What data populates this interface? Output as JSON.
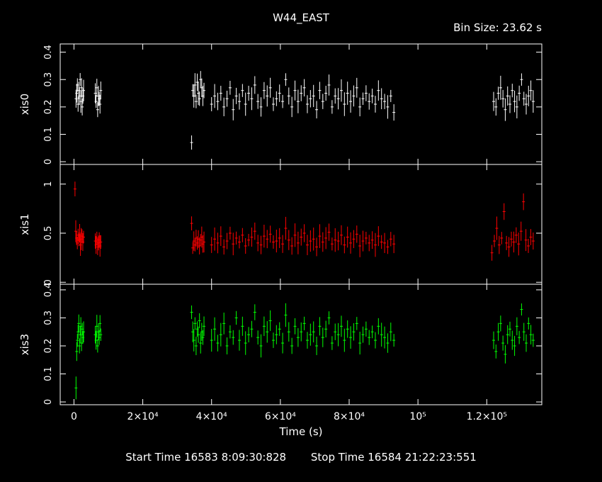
{
  "header": {
    "title": "W44_EAST",
    "bin_size": "Bin Size: 23.62 s"
  },
  "footer": {
    "start_time": "Start Time 16583  8:09:30:828",
    "stop_time": "Stop Time 16584 21:22:23:551"
  },
  "colors": {
    "xis0": "#ffffff",
    "xis1": "#ff0000",
    "xis3": "#00ff00",
    "axes": "#ffffff",
    "background": "#000000"
  },
  "chart_data": {
    "type": "scatter",
    "title": "W44_EAST",
    "xlabel": "Time (s)",
    "xlim": [
      -4000,
      136000
    ],
    "x_ticks": [
      {
        "value": 0,
        "label": "0"
      },
      {
        "value": 20000,
        "label": "2×10⁴"
      },
      {
        "value": 40000,
        "label": "4×10⁴"
      },
      {
        "value": 60000,
        "label": "6×10⁴"
      },
      {
        "value": 80000,
        "label": "8×10⁴"
      },
      {
        "value": 100000,
        "label": "10⁵"
      },
      {
        "value": 120000,
        "label": "1.2×10⁵"
      }
    ],
    "panels": [
      {
        "name": "xis0",
        "ylabel": "xis0",
        "color": "#ffffff",
        "ylim": [
          -0.01,
          0.43
        ],
        "yticks": [
          0,
          0.1,
          0.2,
          0.3,
          0.4
        ],
        "segments": [
          {
            "t_start": 600,
            "t_end": 2800,
            "values": [
              0.23,
              0.25,
              0.28,
              0.21,
              0.26,
              0.24,
              0.3,
              0.22,
              0.27,
              0.2,
              0.24,
              0.26
            ]
          },
          {
            "t_start": 6200,
            "t_end": 7800,
            "values": [
              0.25,
              0.22,
              0.27,
              0.19,
              0.24,
              0.23,
              0.21,
              0.26
            ]
          },
          {
            "t_start": 34200,
            "t_end": 37800,
            "values": [
              0.07,
              0.26,
              0.24,
              0.28,
              0.22,
              0.29,
              0.25,
              0.23,
              0.3,
              0.27,
              0.24,
              0.26
            ]
          },
          {
            "t_start": 40000,
            "t_end": 93000,
            "values": [
              0.21,
              0.24,
              0.22,
              0.25,
              0.2,
              0.23,
              0.27,
              0.19,
              0.24,
              0.22,
              0.26,
              0.21,
              0.25,
              0.23,
              0.28,
              0.22,
              0.2,
              0.26,
              0.24,
              0.27,
              0.21,
              0.23,
              0.25,
              0.22,
              0.3,
              0.24,
              0.2,
              0.26,
              0.22,
              0.25,
              0.27,
              0.21,
              0.23,
              0.24,
              0.19,
              0.26,
              0.22,
              0.25,
              0.28,
              0.2,
              0.24,
              0.23,
              0.26,
              0.21,
              0.25,
              0.22,
              0.24,
              0.27,
              0.2,
              0.23,
              0.25,
              0.22,
              0.24,
              0.21,
              0.26,
              0.23,
              0.22,
              0.2,
              0.24,
              0.18
            ]
          },
          {
            "t_start": 122000,
            "t_end": 133500,
            "values": [
              0.22,
              0.2,
              0.25,
              0.27,
              0.23,
              0.19,
              0.24,
              0.21,
              0.26,
              0.22,
              0.2,
              0.25,
              0.3,
              0.23,
              0.21,
              0.24,
              0.26,
              0.22
            ]
          }
        ]
      },
      {
        "name": "xis1",
        "ylabel": "xis1",
        "color": "#ff0000",
        "ylim": [
          -0.02,
          1.2
        ],
        "yticks": [
          0,
          0.5,
          1
        ],
        "ytick_labels": [
          "0",
          "0.5",
          "1"
        ],
        "segments": [
          {
            "t_start": 300,
            "t_end": 2800,
            "values": [
              0.95,
              0.52,
              0.45,
              0.4,
              0.48,
              0.43,
              0.5,
              0.38,
              0.44,
              0.47,
              0.41,
              0.46
            ]
          },
          {
            "t_start": 6200,
            "t_end": 7800,
            "values": [
              0.42,
              0.38,
              0.45,
              0.36,
              0.4,
              0.43,
              0.37,
              0.41
            ]
          },
          {
            "t_start": 34200,
            "t_end": 37800,
            "values": [
              0.6,
              0.35,
              0.42,
              0.38,
              0.45,
              0.4,
              0.44,
              0.37,
              0.43,
              0.46,
              0.39,
              0.41
            ]
          },
          {
            "t_start": 40000,
            "t_end": 93000,
            "values": [
              0.38,
              0.44,
              0.4,
              0.47,
              0.36,
              0.42,
              0.5,
              0.39,
              0.45,
              0.41,
              0.48,
              0.37,
              0.43,
              0.46,
              0.52,
              0.4,
              0.38,
              0.47,
              0.44,
              0.49,
              0.41,
              0.42,
              0.45,
              0.39,
              0.55,
              0.43,
              0.37,
              0.48,
              0.4,
              0.46,
              0.5,
              0.38,
              0.42,
              0.44,
              0.36,
              0.47,
              0.41,
              0.45,
              0.51,
              0.39,
              0.43,
              0.42,
              0.48,
              0.38,
              0.46,
              0.4,
              0.44,
              0.49,
              0.37,
              0.42,
              0.45,
              0.4,
              0.43,
              0.38,
              0.47,
              0.41,
              0.4,
              0.36,
              0.44,
              0.39
            ]
          },
          {
            "t_start": 121500,
            "t_end": 133500,
            "values": [
              0.3,
              0.42,
              0.55,
              0.38,
              0.45,
              0.72,
              0.4,
              0.36,
              0.44,
              0.41,
              0.48,
              0.39,
              0.52,
              0.82,
              0.43,
              0.37,
              0.46,
              0.42
            ]
          }
        ]
      },
      {
        "name": "xis3",
        "ylabel": "xis3",
        "color": "#00ff00",
        "ylim": [
          -0.01,
          0.42
        ],
        "yticks": [
          0,
          0.1,
          0.2,
          0.3,
          0.4
        ],
        "segments": [
          {
            "t_start": 600,
            "t_end": 2800,
            "values": [
              0.05,
              0.18,
              0.22,
              0.25,
              0.28,
              0.2,
              0.24,
              0.27,
              0.21,
              0.26,
              0.23,
              0.25
            ]
          },
          {
            "t_start": 6200,
            "t_end": 7800,
            "values": [
              0.24,
              0.22,
              0.27,
              0.2,
              0.25,
              0.23,
              0.28,
              0.24
            ]
          },
          {
            "t_start": 34200,
            "t_end": 37800,
            "values": [
              0.32,
              0.25,
              0.22,
              0.28,
              0.2,
              0.26,
              0.24,
              0.29,
              0.21,
              0.25,
              0.23,
              0.27
            ]
          },
          {
            "t_start": 40000,
            "t_end": 93000,
            "values": [
              0.22,
              0.26,
              0.21,
              0.24,
              0.28,
              0.2,
              0.25,
              0.23,
              0.3,
              0.22,
              0.27,
              0.21,
              0.24,
              0.26,
              0.32,
              0.23,
              0.2,
              0.27,
              0.25,
              0.29,
              0.22,
              0.24,
              0.26,
              0.21,
              0.31,
              0.25,
              0.2,
              0.27,
              0.23,
              0.25,
              0.28,
              0.22,
              0.24,
              0.25,
              0.2,
              0.27,
              0.23,
              0.26,
              0.3,
              0.21,
              0.25,
              0.24,
              0.27,
              0.22,
              0.26,
              0.23,
              0.25,
              0.28,
              0.21,
              0.24,
              0.26,
              0.23,
              0.25,
              0.22,
              0.27,
              0.24,
              0.23,
              0.21,
              0.25,
              0.22
            ]
          },
          {
            "t_start": 122000,
            "t_end": 133500,
            "values": [
              0.22,
              0.18,
              0.25,
              0.28,
              0.21,
              0.17,
              0.24,
              0.26,
              0.22,
              0.2,
              0.27,
              0.23,
              0.33,
              0.25,
              0.21,
              0.28,
              0.24,
              0.22
            ]
          }
        ]
      }
    ]
  }
}
